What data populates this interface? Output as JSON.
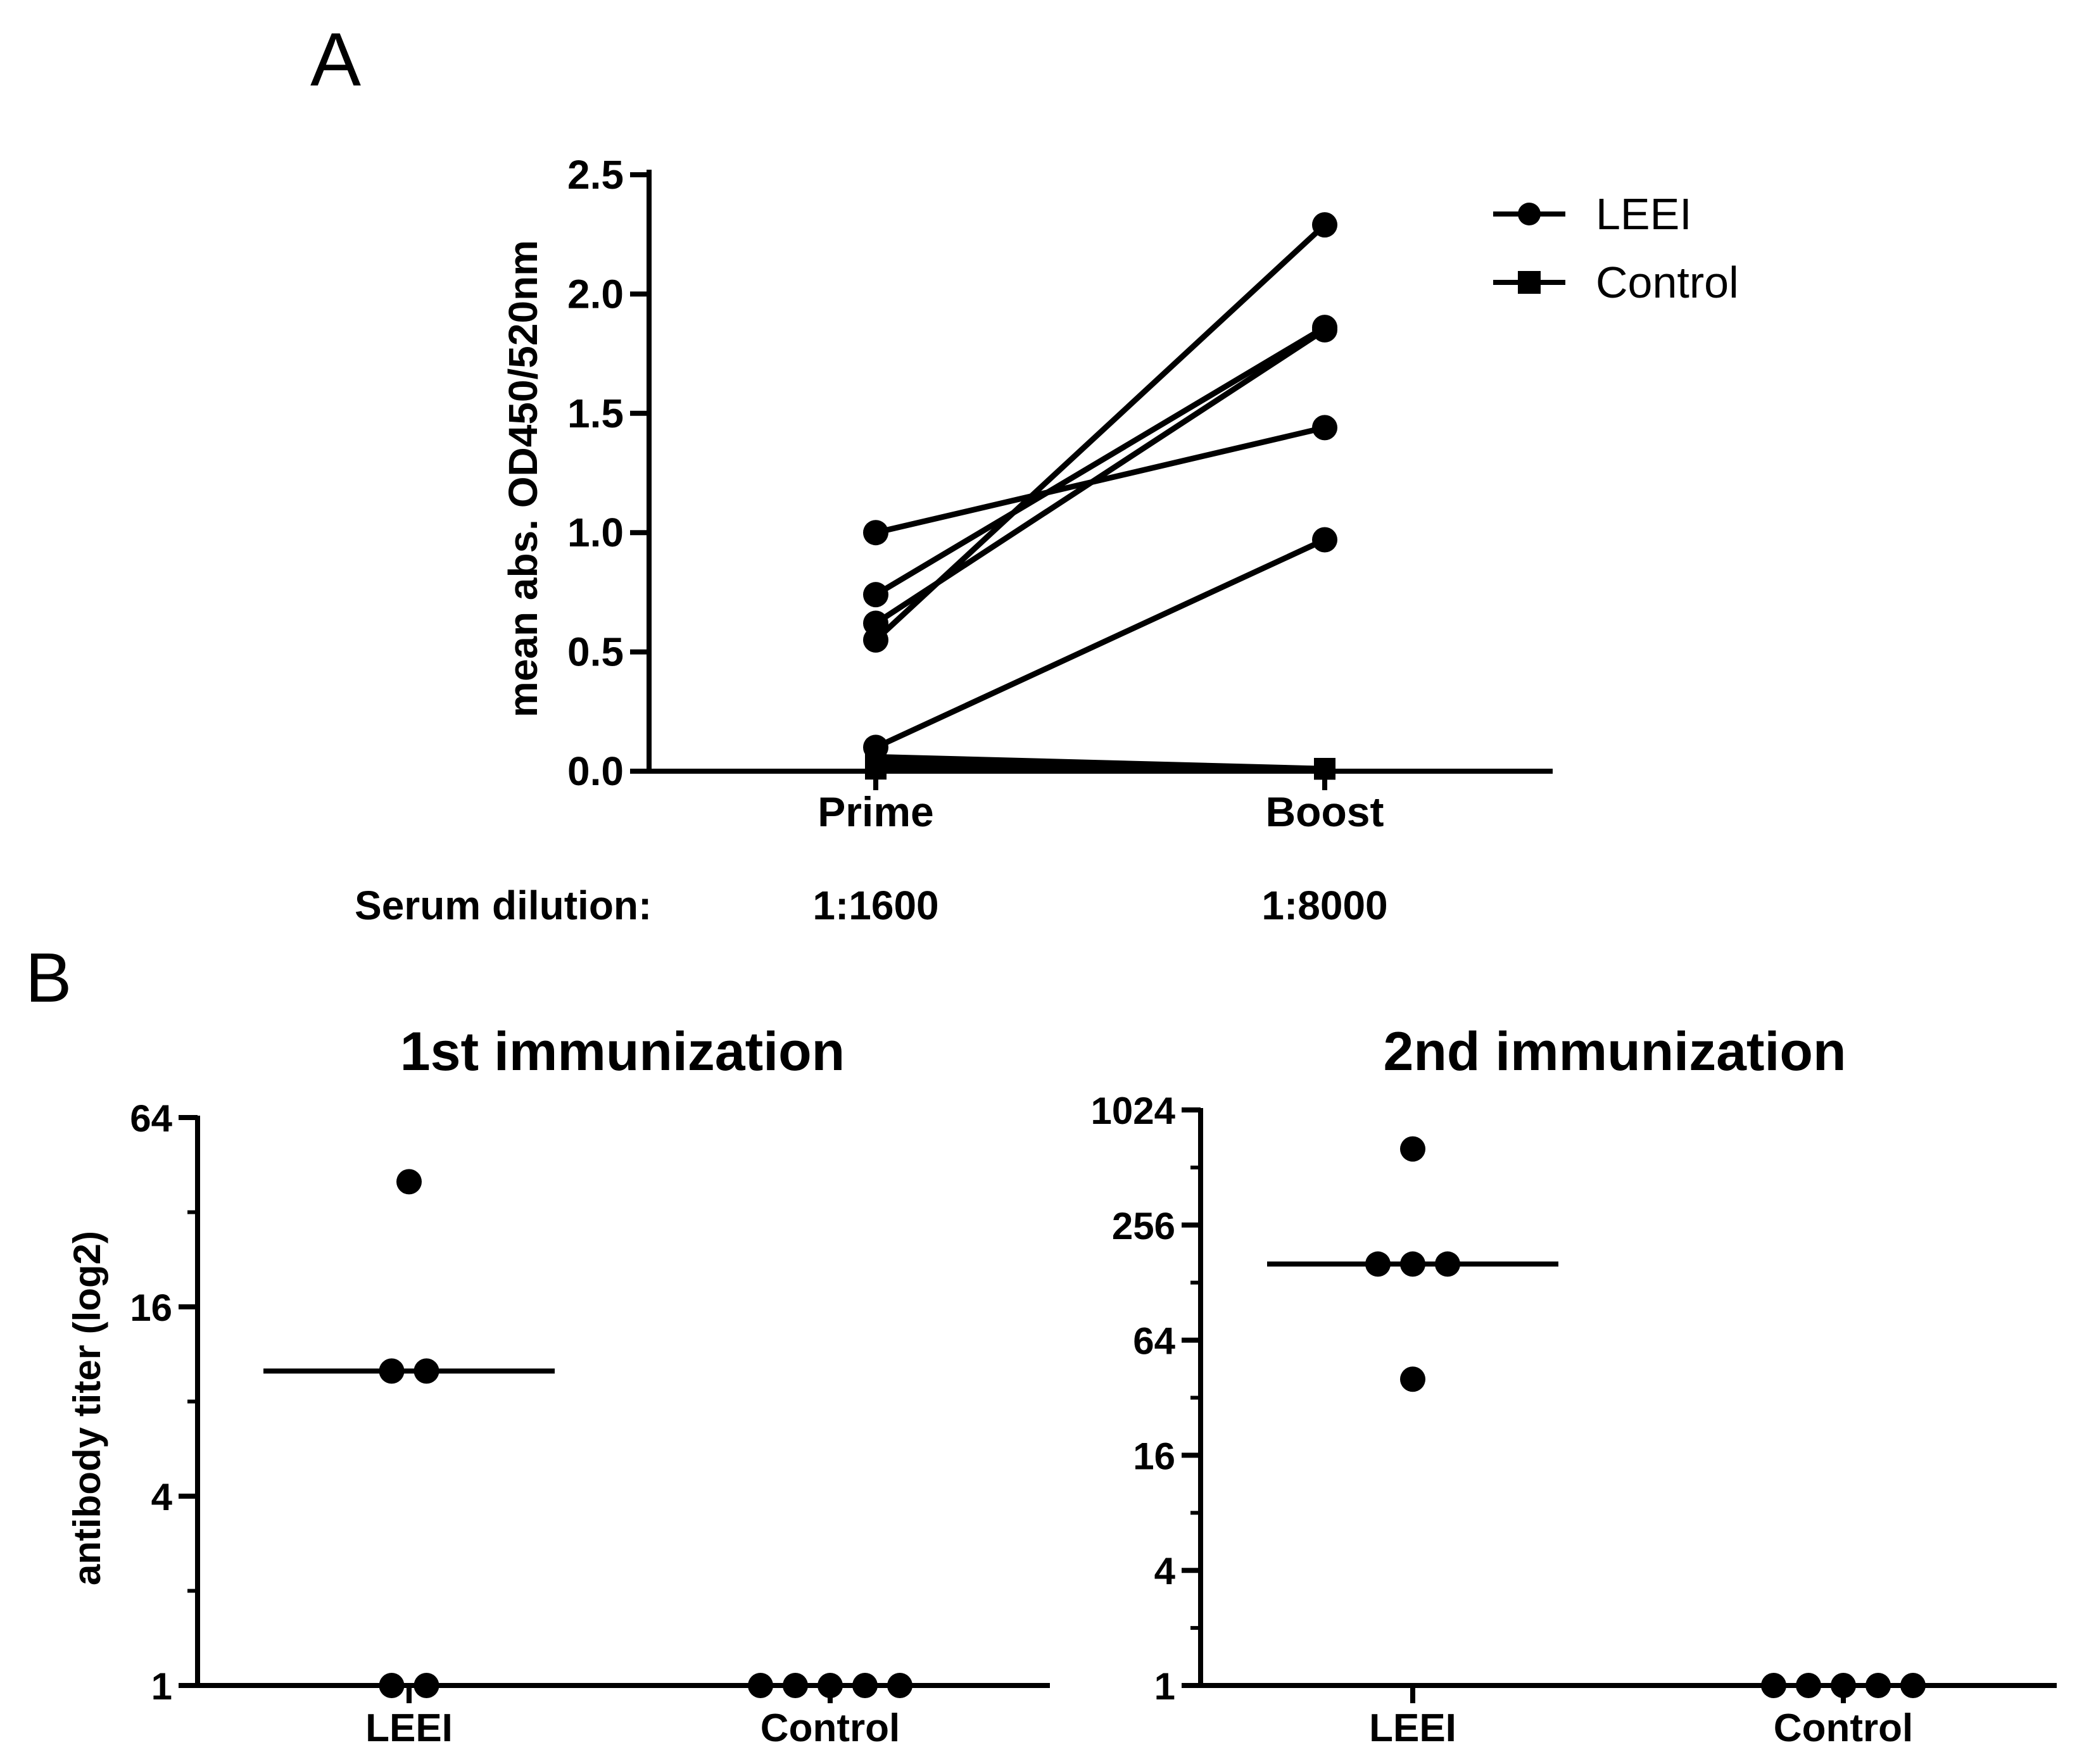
{
  "chart_data": [
    {
      "panel_label": "A",
      "type": "line",
      "xlabel": "",
      "ylabel": "mean abs. OD450/520nm",
      "categories": [
        "Prime",
        "Boost"
      ],
      "ylim": [
        0,
        2.5
      ],
      "yticks": [
        "0.0",
        "0.5",
        "1.0",
        "1.5",
        "2.0",
        "2.5"
      ],
      "footer": {
        "label": "Serum dilution:",
        "values": [
          "1:1600",
          "1:8000"
        ]
      },
      "legend": {
        "position": "top-right",
        "entries": [
          {
            "name": "LEEI",
            "marker": "circle"
          },
          {
            "name": "Control",
            "marker": "square"
          }
        ]
      },
      "series": [
        {
          "name": "LEEI",
          "values": [
            1.0,
            1.44
          ]
        },
        {
          "name": "LEEI",
          "values": [
            0.74,
            1.86
          ]
        },
        {
          "name": "LEEI",
          "values": [
            0.62,
            1.85
          ]
        },
        {
          "name": "LEEI",
          "values": [
            0.55,
            2.29
          ]
        },
        {
          "name": "LEEI",
          "values": [
            0.1,
            0.97
          ]
        },
        {
          "name": "Control",
          "values": [
            0.06,
            0.01
          ]
        },
        {
          "name": "Control",
          "values": [
            0.04,
            0.01
          ]
        },
        {
          "name": "Control",
          "values": [
            0.03,
            0.01
          ]
        },
        {
          "name": "Control",
          "values": [
            0.02,
            0.01
          ]
        },
        {
          "name": "Control",
          "values": [
            0.01,
            0.01
          ]
        }
      ]
    },
    {
      "panel_label": "B",
      "type": "scatter",
      "title": "1st immunization",
      "ylabel": "antibody titer (log2)",
      "yscale": "log2",
      "ylim": [
        1,
        64
      ],
      "yticks": [
        "1",
        "4",
        "16",
        "64"
      ],
      "categories": [
        "LEEI",
        "Control"
      ],
      "series": [
        {
          "name": "LEEI",
          "values": [
            40,
            10,
            10,
            1,
            1
          ],
          "median": 10
        },
        {
          "name": "Control",
          "values": [
            1,
            1,
            1,
            1,
            1
          ],
          "median": 1
        }
      ]
    },
    {
      "type": "scatter",
      "title": "2nd immunization",
      "ylabel": "",
      "yscale": "log2",
      "ylim": [
        1,
        1024
      ],
      "yticks": [
        "1",
        "4",
        "16",
        "64",
        "256",
        "1024"
      ],
      "categories": [
        "LEEI",
        "Control"
      ],
      "series": [
        {
          "name": "LEEI",
          "values": [
            640,
            160,
            160,
            160,
            40
          ],
          "median": 160
        },
        {
          "name": "Control",
          "values": [
            1,
            1,
            1,
            1,
            1
          ],
          "median": 1
        }
      ]
    }
  ]
}
